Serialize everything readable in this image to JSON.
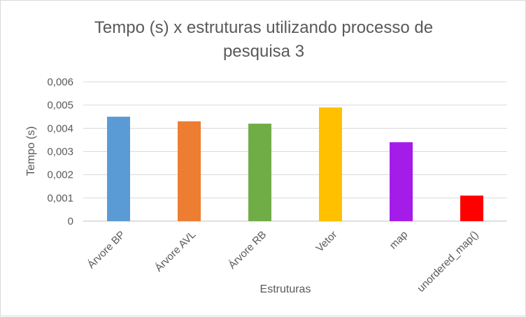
{
  "chart_data": {
    "type": "bar",
    "title_lines": [
      "Tempo (s) x estruturas utilizando processo de",
      "pesquisa 3"
    ],
    "xlabel": "Estruturas",
    "ylabel": "Tempo (s)",
    "categories": [
      "Árvore BP",
      "Árvore AVL",
      "Árvore RB",
      "Vetor",
      "map",
      "unordered_map()"
    ],
    "values": [
      0.0045,
      0.0043,
      0.0042,
      0.0049,
      0.0034,
      0.0011
    ],
    "bar_colors": [
      "#5b9bd5",
      "#ed7d31",
      "#70ad47",
      "#ffc000",
      "#a31ce8",
      "#ff0000"
    ],
    "yticks": [
      "0",
      "0,001",
      "0,002",
      "0,003",
      "0,004",
      "0,005",
      "0,006"
    ],
    "ylim": [
      0,
      0.006
    ],
    "grid": true,
    "legend": "none"
  }
}
